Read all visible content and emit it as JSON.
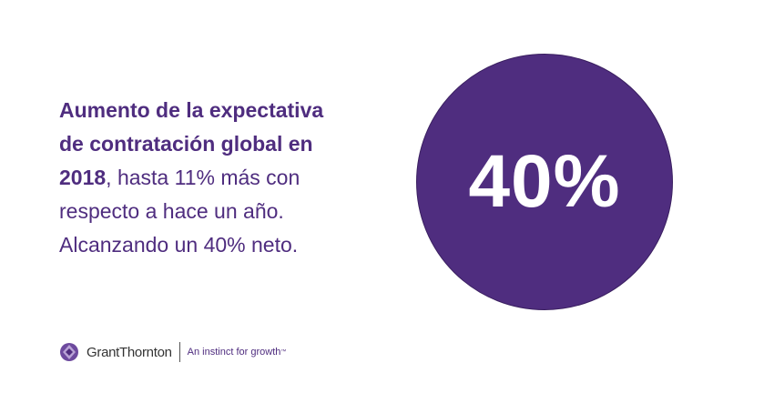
{
  "headline": {
    "lines": [
      {
        "bold": "Aumento de la expectativa"
      },
      {
        "bold": "de contratación global en"
      },
      {
        "bold": "2018",
        "regular": ", hasta 11% más con"
      },
      {
        "regular": "respecto a hace un año."
      },
      {
        "regular": "Alcanzando un 40% neto."
      }
    ]
  },
  "stat": "40%",
  "logo": {
    "brand": "GrantThornton",
    "tagline": "An instinct for growth",
    "trademark": "™"
  }
}
